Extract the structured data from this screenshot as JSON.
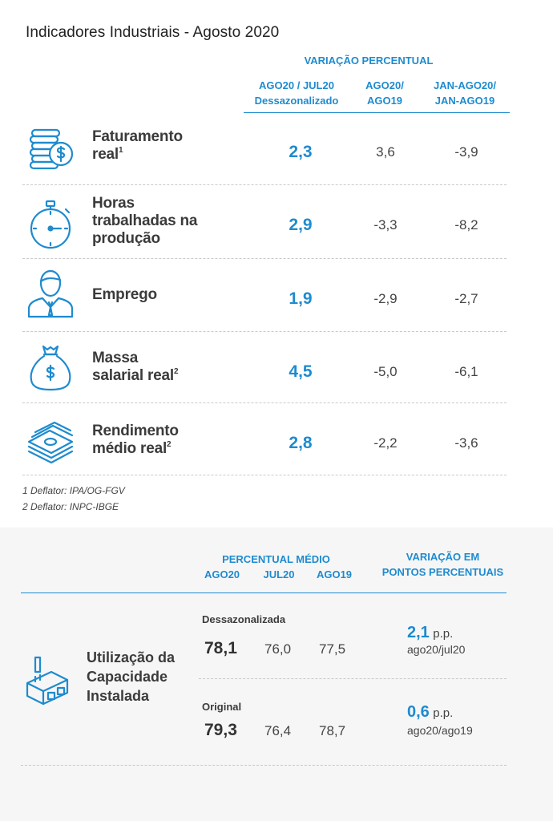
{
  "title": "Indicadores Industriais - Agosto 2020",
  "table": {
    "group_header": "VARIAÇÃO PERCENTUAL",
    "columns": [
      {
        "line1": "AGO20 / JUL20",
        "line2": "Dessazonalizado"
      },
      {
        "line1": "AGO20/",
        "line2": "AGO19"
      },
      {
        "line1": "JAN-AGO20/",
        "line2": "JAN-AGO19"
      }
    ],
    "rows": [
      {
        "icon": "coins-icon",
        "label_lines": [
          "Faturamento",
          "real"
        ],
        "sup": "1",
        "values": [
          "2,3",
          "3,6",
          "-3,9"
        ]
      },
      {
        "icon": "stopwatch-icon",
        "label_lines": [
          "Horas",
          "trabalhadas na",
          "produção"
        ],
        "sup": "",
        "values": [
          "2,9",
          "-3,3",
          "-8,2"
        ]
      },
      {
        "icon": "worker-icon",
        "label_lines": [
          "Emprego"
        ],
        "sup": "",
        "values": [
          "1,9",
          "-2,9",
          "-2,7"
        ]
      },
      {
        "icon": "money-bag-icon",
        "label_lines": [
          "Massa",
          "salarial real"
        ],
        "sup": "2",
        "values": [
          "4,5",
          "-5,0",
          "-6,1"
        ]
      },
      {
        "icon": "banknotes-icon",
        "label_lines": [
          "Rendimento",
          "médio real"
        ],
        "sup": "2",
        "values": [
          "2,8",
          "-2,2",
          "-3,6"
        ]
      }
    ]
  },
  "footnotes": [
    "1 Deflator: IPA/OG-FGV",
    "2 Deflator: INPC-IBGE"
  ],
  "capacity": {
    "header_avg": "PERCENTUAL MÉDIO",
    "header_var_line1": "VARIAÇÃO EM",
    "header_var_line2": "PONTOS PERCENTUAIS",
    "cols": [
      "AGO20",
      "JUL20",
      "AGO19"
    ],
    "label_lines": [
      "Utilização da",
      "Capacidade",
      "Instalada"
    ],
    "icon": "factory-icon",
    "sections": [
      {
        "name": "Dessazonalizada",
        "values": [
          "78,1",
          "76,0",
          "77,5"
        ],
        "pp": "2,1",
        "unit": "p.p.",
        "ref": "ago20/jul20"
      },
      {
        "name": "Original",
        "values": [
          "79,3",
          "76,4",
          "78,7"
        ],
        "pp": "0,6",
        "unit": "p.p.",
        "ref": "ago20/ago19"
      }
    ]
  },
  "colors": {
    "accent": "#1e8bcf",
    "text": "#333333",
    "panel_bg": "#f6f6f6"
  }
}
